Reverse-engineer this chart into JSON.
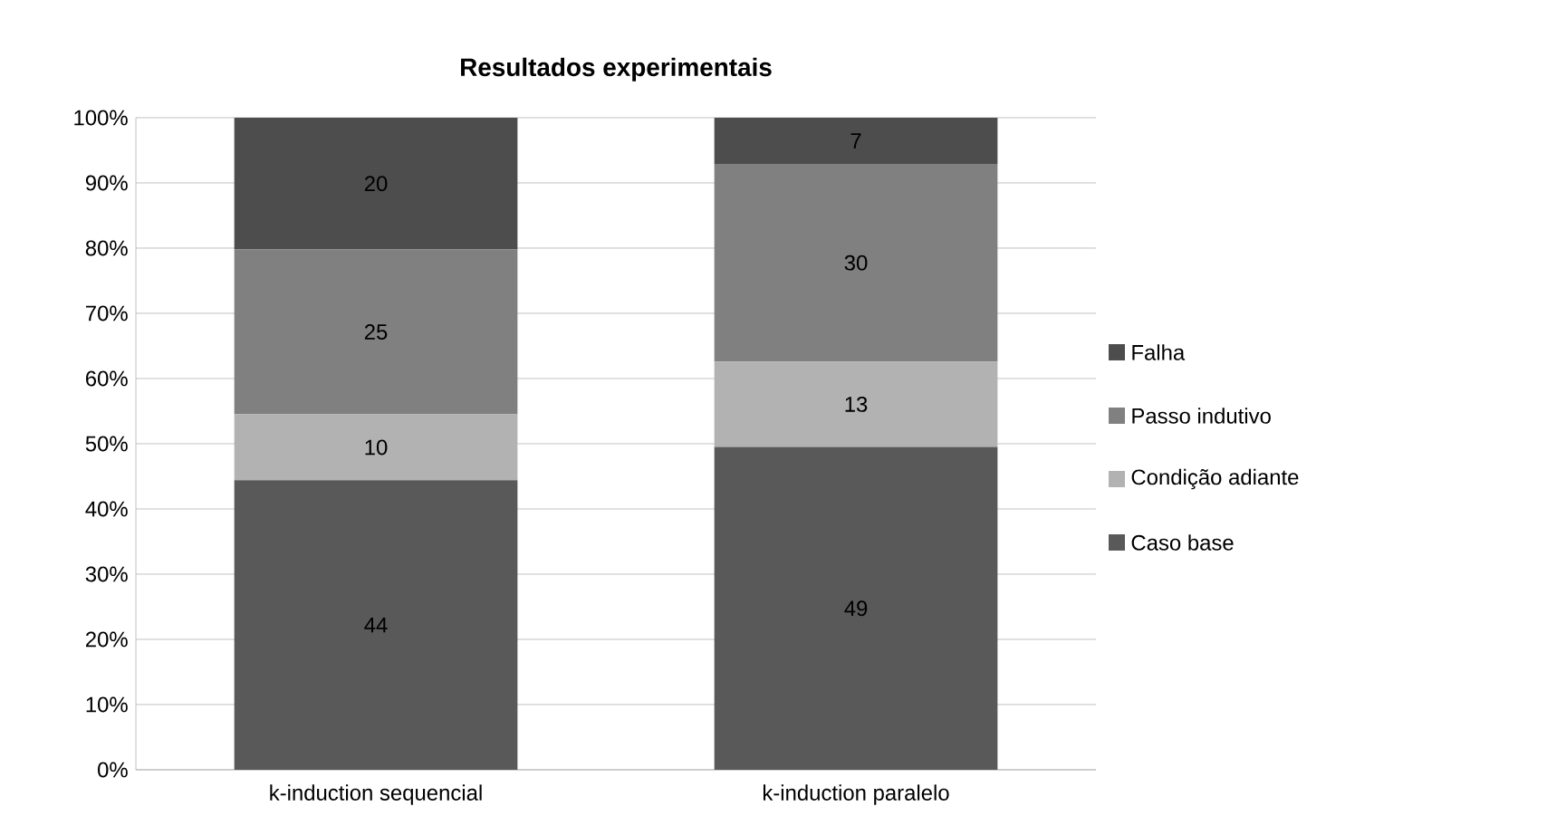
{
  "chart_data": {
    "type": "bar",
    "title": "Resultados experimentais",
    "stacked": true,
    "categories": [
      "k-induction sequencial",
      "k-induction paralelo"
    ],
    "series": [
      {
        "name": "Caso base",
        "color": "#595959",
        "values": [
          44.4,
          49.5
        ],
        "value_labels": [
          "44",
          "49"
        ]
      },
      {
        "name": "Condição adiante",
        "color": "#b2b2b2",
        "values": [
          10.1,
          13.1
        ],
        "value_labels": [
          "10",
          "13"
        ]
      },
      {
        "name": "Passo indutivo",
        "color": "#808080",
        "values": [
          25.3,
          30.3
        ],
        "value_labels": [
          "25",
          "30"
        ]
      },
      {
        "name": "Falha",
        "color": "#4d4d4d",
        "values": [
          20.2,
          7.1
        ],
        "value_labels": [
          "20",
          "7"
        ]
      }
    ],
    "ylim": [
      0,
      100
    ],
    "yticks": [
      {
        "value": 0,
        "label": "0%"
      },
      {
        "value": 10,
        "label": "10%"
      },
      {
        "value": 20,
        "label": "20%"
      },
      {
        "value": 30,
        "label": "30%"
      },
      {
        "value": 40,
        "label": "40%"
      },
      {
        "value": 50,
        "label": "50%"
      },
      {
        "value": 60,
        "label": "60%"
      },
      {
        "value": 70,
        "label": "70%"
      },
      {
        "value": 80,
        "label": "80%"
      },
      {
        "value": 90,
        "label": "90%"
      },
      {
        "value": 100,
        "label": "100%"
      }
    ],
    "grid": "y",
    "legend": "right"
  }
}
